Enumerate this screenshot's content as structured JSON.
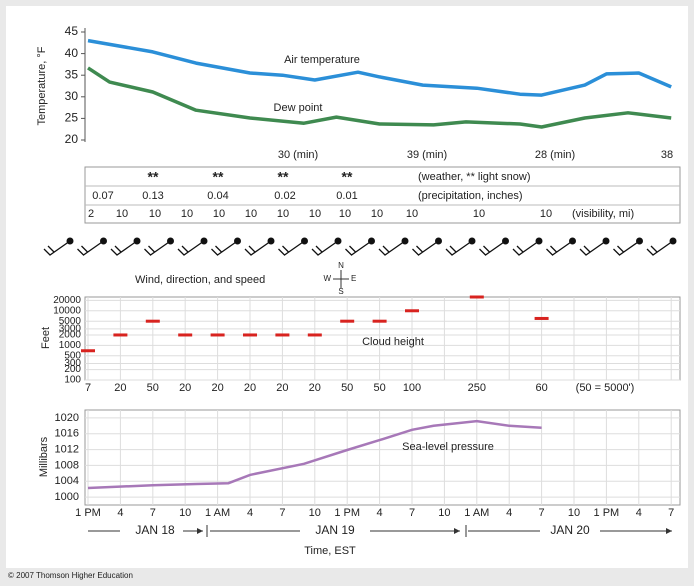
{
  "chart_data": [
    {
      "type": "line",
      "ylabel": "Temperature, °F",
      "xlim": [
        0,
        54
      ],
      "ylim": [
        20,
        45
      ],
      "yticks": [
        20,
        25,
        30,
        35,
        40,
        45
      ],
      "series": [
        {
          "name": "Air temperature",
          "color": "#2b8fd8",
          "x": [
            0,
            6,
            10,
            15,
            18,
            21,
            25,
            27,
            31,
            36,
            40,
            42,
            46,
            48,
            51,
            54
          ],
          "values": [
            43,
            40.4,
            37.8,
            35.5,
            35,
            33.9,
            35.7,
            34.6,
            32.7,
            32,
            30.6,
            30.4,
            32.7,
            35.3,
            35.5,
            32.3
          ]
        },
        {
          "name": "Dew point",
          "color": "#3f8a50",
          "x": [
            0,
            2,
            6,
            10,
            15,
            20,
            23,
            27,
            32,
            35,
            40,
            42,
            46,
            50,
            54
          ],
          "values": [
            36.7,
            33.4,
            31.1,
            26.9,
            25.1,
            23.9,
            25.3,
            23.7,
            23.5,
            24.2,
            23.7,
            23,
            25.1,
            26.3,
            25.1
          ]
        }
      ],
      "annotations": [
        "30 (min)",
        "39 (min)",
        "28 (min)",
        "38"
      ]
    },
    {
      "type": "scatter",
      "ylabel": "Feet",
      "label": "Cloud height",
      "note": "(50 = 5000')",
      "log_scale": true,
      "color": "#d8231f",
      "grid": true,
      "xlim": [
        0,
        54
      ],
      "ylim": [
        100,
        25000
      ],
      "yticks": [
        100,
        200,
        300,
        500,
        1000,
        2000,
        3000,
        5000,
        10000,
        20000
      ],
      "x": [
        0,
        3,
        6,
        9,
        12,
        15,
        18,
        21,
        24,
        27,
        30,
        36,
        42
      ],
      "values": [
        700,
        2000,
        5000,
        2000,
        2000,
        2000,
        2000,
        2000,
        5000,
        5000,
        10000,
        25000,
        6000
      ],
      "value_labels": [
        "7",
        "20",
        "50",
        "20",
        "20",
        "20",
        "20",
        "20",
        "50",
        "50",
        "100",
        "250",
        "60"
      ]
    },
    {
      "type": "line",
      "ylabel": "Millibars",
      "label": "Sea-level pressure",
      "xlabel": "Time, EST",
      "color": "#a778b8",
      "grid": true,
      "xlim": [
        0,
        54
      ],
      "ylim": [
        998,
        1022
      ],
      "yticks": [
        1000,
        1004,
        1008,
        1012,
        1016,
        1020
      ],
      "xticks": [
        {
          "value": 0,
          "label": "1 PM"
        },
        {
          "value": 3,
          "label": "4"
        },
        {
          "value": 6,
          "label": "7"
        },
        {
          "value": 9,
          "label": "10"
        },
        {
          "value": 12,
          "label": "1 AM"
        },
        {
          "value": 15,
          "label": "4"
        },
        {
          "value": 18,
          "label": "7"
        },
        {
          "value": 21,
          "label": "10"
        },
        {
          "value": 24,
          "label": "1 PM"
        },
        {
          "value": 27,
          "label": "4"
        },
        {
          "value": 30,
          "label": "7"
        },
        {
          "value": 33,
          "label": "10"
        },
        {
          "value": 36,
          "label": "1 AM"
        },
        {
          "value": 39,
          "label": "4"
        },
        {
          "value": 42,
          "label": "7"
        },
        {
          "value": 45,
          "label": "10"
        },
        {
          "value": 48,
          "label": "1 PM"
        },
        {
          "value": 51,
          "label": "4"
        },
        {
          "value": 54,
          "label": "7"
        }
      ],
      "dates": [
        "JAN 18",
        "JAN 19",
        "JAN 20"
      ],
      "x": [
        0,
        6,
        10,
        13,
        15,
        20,
        24,
        27,
        30,
        32,
        36,
        39,
        42
      ],
      "values": [
        1002.3,
        1003,
        1003.3,
        1003.5,
        1005.6,
        1008.4,
        1011.9,
        1014.4,
        1017,
        1018,
        1019.2,
        1018,
        1017.5
      ]
    }
  ],
  "weather_table": {
    "weather": [
      "**",
      "**",
      "**",
      "**"
    ],
    "weather_label": "(weather, ** light snow)",
    "precipitation": [
      0.07,
      0.13,
      0.04,
      0.02,
      0.01
    ],
    "precipitation_label": "(precipitation, inches)",
    "visibility": [
      2,
      10,
      10,
      10,
      10,
      10,
      10,
      10,
      10,
      10,
      10,
      10,
      10
    ],
    "visibility_label": "(visibility, mi)"
  },
  "wind": {
    "label": "Wind, direction, and speed",
    "compass": [
      "N",
      "W",
      "E",
      "S"
    ]
  },
  "footer": "© 2007 Thomson Higher Education"
}
